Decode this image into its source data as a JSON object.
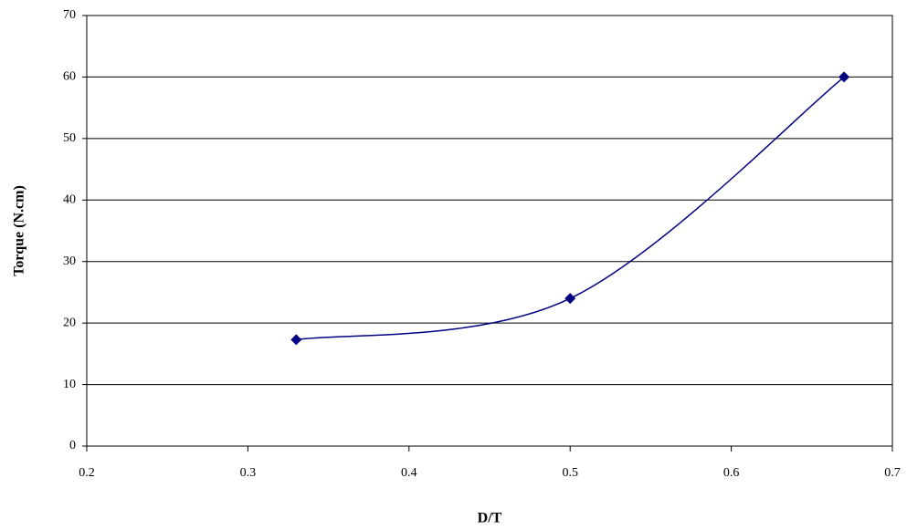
{
  "chart_data": {
    "type": "scatter",
    "smooth": true,
    "x_label": "D/T",
    "y_label": "Torque (N.cm)",
    "series": [
      {
        "color": "#000080",
        "x": [
          0.33,
          0.5,
          0.67
        ],
        "values": [
          17.3,
          24,
          60
        ]
      }
    ],
    "xlim": [
      0.2,
      0.7
    ],
    "xticks": [
      0.2,
      0.3,
      0.4,
      0.5,
      0.6,
      0.7
    ],
    "ylim": [
      0,
      70
    ],
    "yticks": [
      0,
      10,
      20,
      30,
      40,
      50,
      60,
      70
    ],
    "grid": true
  }
}
